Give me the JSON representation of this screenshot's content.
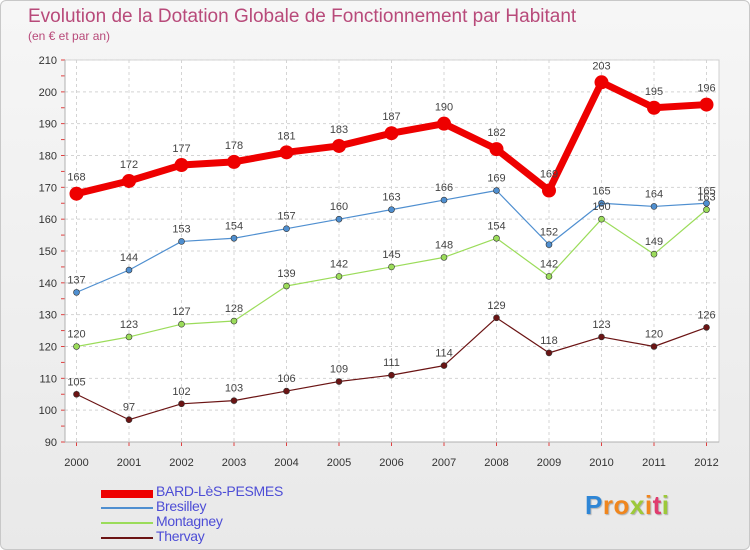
{
  "chart_data": {
    "type": "line",
    "title": "Evolution de la Dotation Globale de Fonctionnement par Habitant",
    "subtitle": "(en € et par an)",
    "xlabel": "",
    "ylabel": "",
    "x": [
      "2000",
      "2001",
      "2002",
      "2003",
      "2004",
      "2005",
      "2006",
      "2007",
      "2008",
      "2009",
      "2010",
      "2011",
      "2012"
    ],
    "ylim": [
      90,
      210
    ],
    "yticks": [
      90,
      100,
      110,
      120,
      130,
      140,
      150,
      160,
      170,
      180,
      190,
      200,
      210
    ],
    "grid": true,
    "legend_position": "bottom-left",
    "series": [
      {
        "name": "BARD-LèS-PESMES",
        "color": "#ee0000",
        "values": [
          168,
          172,
          177,
          178,
          181,
          183,
          187,
          190,
          182,
          169,
          203,
          195,
          196
        ]
      },
      {
        "name": "Bresilley",
        "color": "#4f8fd0",
        "values": [
          137,
          144,
          153,
          154,
          157,
          160,
          163,
          166,
          169,
          152,
          165,
          164,
          165
        ]
      },
      {
        "name": "Montagney",
        "color": "#9bdc5a",
        "values": [
          120,
          123,
          127,
          128,
          139,
          142,
          145,
          148,
          154,
          142,
          160,
          149,
          163
        ]
      },
      {
        "name": "Thervay",
        "color": "#6b1414",
        "values": [
          105,
          97,
          102,
          103,
          106,
          109,
          111,
          114,
          129,
          118,
          123,
          120,
          126
        ]
      }
    ]
  },
  "logo": {
    "letters": [
      "P",
      "r",
      "o",
      "x",
      "i",
      "t",
      "i"
    ],
    "colors": [
      "#2e86d6",
      "#f0861e",
      "#f0861e",
      "#9dc93a",
      "#f0861e",
      "#e03b6e",
      "#9dc93a"
    ]
  }
}
